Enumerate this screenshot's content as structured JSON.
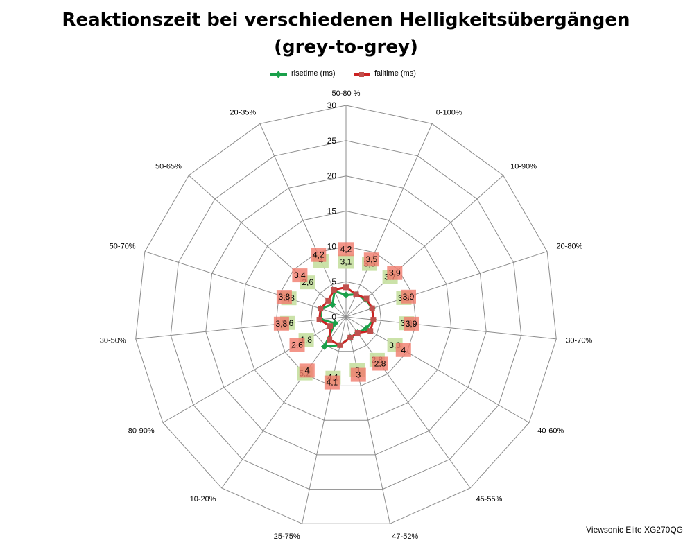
{
  "chart_data": {
    "type": "radar",
    "title": "Reaktionszeit bei verschiedenen Helligkeitsübergängen",
    "subtitle": "(grey-to-grey)",
    "categories": [
      "50-80 %",
      "0-100%",
      "10-90%",
      "20-80%",
      "30-70%",
      "40-60%",
      "45-55%",
      "47-52%",
      "25-75%",
      "10-20%",
      "80-90%",
      "30-50%",
      "50-70%",
      "50-65%",
      "20-35%"
    ],
    "rlim": [
      0,
      30
    ],
    "ticks": [
      0,
      5,
      10,
      15,
      20,
      25,
      30
    ],
    "tick_labels": [
      "0",
      "5",
      "10",
      "15",
      "20",
      "25",
      "30"
    ],
    "grid": true,
    "legend_position": "top",
    "series": [
      {
        "name": "risetime (ms)",
        "color": "#1aa04a",
        "label_bg": "#c8e0a4",
        "values": [
          3.1,
          3.5,
          3.7,
          3.9,
          3.9,
          3.3,
          2.8,
          3.0,
          4.1,
          5.2,
          1.8,
          3.6,
          3.8,
          2.6,
          4.0
        ],
        "labels": [
          "3,1",
          "3,5",
          "3,7",
          "3,9",
          "3,9",
          "3,3",
          "2,8",
          "3",
          "4,1",
          "5,2",
          "1,8",
          "3,6",
          "3,8",
          "2,6",
          "4"
        ]
      },
      {
        "name": "falltime (ms)",
        "color": "#cc2222",
        "label_bg": "#f07b6b",
        "values": [
          4.2,
          3.5,
          3.9,
          3.9,
          3.9,
          4.0,
          2.8,
          3.0,
          4.1,
          4.0,
          2.6,
          3.8,
          3.8,
          3.4,
          4.2
        ],
        "labels": [
          "4,2",
          "3,5",
          "3,9",
          "3,9",
          "3,9",
          "4",
          "2,8",
          "3",
          "4,1",
          "4",
          "2,6",
          "3,8",
          "3,8",
          "3,4",
          "4,2"
        ]
      }
    ]
  },
  "watermark": "Viewsonic Elite XG270QG"
}
